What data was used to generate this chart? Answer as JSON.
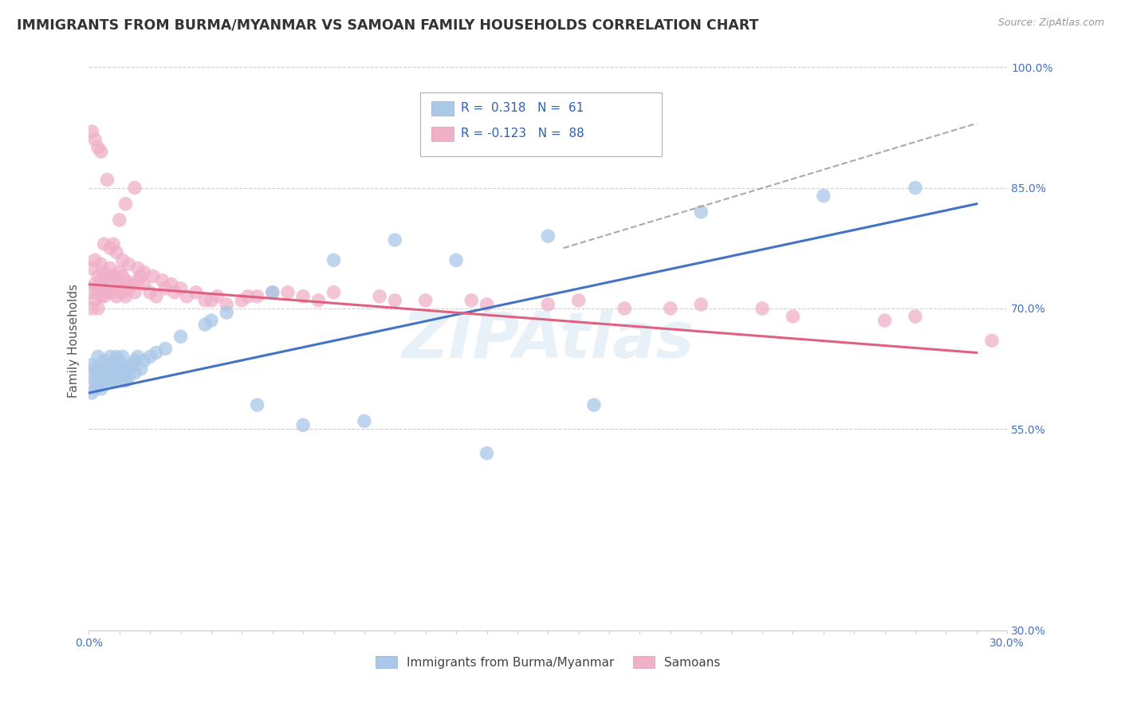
{
  "title": "IMMIGRANTS FROM BURMA/MYANMAR VS SAMOAN FAMILY HOUSEHOLDS CORRELATION CHART",
  "source_text": "Source: ZipAtlas.com",
  "ylabel": "Family Households",
  "xlim": [
    0.0,
    0.3
  ],
  "ylim": [
    0.3,
    1.02
  ],
  "color_blue": "#aac8e8",
  "color_pink": "#f0b0c8",
  "color_blue_line": "#4472c4",
  "color_pink_line": "#e06080",
  "color_gray_line": "#aaaaaa",
  "legend_R1": "0.318",
  "legend_N1": "61",
  "legend_R2": "-0.123",
  "legend_N2": "88",
  "legend_label1": "Immigrants from Burma/Myanmar",
  "legend_label2": "Samoans",
  "watermark": "ZIPAtlas",
  "ytick_positions": [
    0.3,
    0.55,
    0.7,
    0.85,
    1.0
  ],
  "ytick_labels": [
    "30.0%",
    "55.0%",
    "70.0%",
    "85.0%",
    "100.0%"
  ],
  "blue_line_x": [
    0.0,
    0.29
  ],
  "blue_line_y": [
    0.595,
    0.83
  ],
  "pink_line_x": [
    0.0,
    0.29
  ],
  "pink_line_y": [
    0.73,
    0.645
  ],
  "gray_line_x": [
    0.155,
    0.29
  ],
  "gray_line_y": [
    0.775,
    0.93
  ],
  "blue_scatter_x": [
    0.001,
    0.001,
    0.001,
    0.002,
    0.002,
    0.002,
    0.003,
    0.003,
    0.003,
    0.004,
    0.004,
    0.004,
    0.005,
    0.005,
    0.005,
    0.006,
    0.006,
    0.007,
    0.007,
    0.007,
    0.008,
    0.008,
    0.008,
    0.009,
    0.009,
    0.009,
    0.01,
    0.01,
    0.01,
    0.011,
    0.011,
    0.012,
    0.012,
    0.013,
    0.013,
    0.014,
    0.015,
    0.015,
    0.016,
    0.017,
    0.018,
    0.02,
    0.022,
    0.025,
    0.03,
    0.038,
    0.045,
    0.06,
    0.08,
    0.1,
    0.13,
    0.165,
    0.2,
    0.24,
    0.27,
    0.12,
    0.15,
    0.04,
    0.055,
    0.07,
    0.09
  ],
  "blue_scatter_y": [
    0.615,
    0.63,
    0.595,
    0.625,
    0.61,
    0.6,
    0.62,
    0.64,
    0.605,
    0.625,
    0.615,
    0.6,
    0.62,
    0.635,
    0.61,
    0.615,
    0.625,
    0.63,
    0.61,
    0.64,
    0.62,
    0.625,
    0.61,
    0.625,
    0.615,
    0.64,
    0.62,
    0.61,
    0.635,
    0.625,
    0.64,
    0.62,
    0.61,
    0.625,
    0.615,
    0.63,
    0.635,
    0.62,
    0.64,
    0.625,
    0.635,
    0.64,
    0.645,
    0.65,
    0.665,
    0.68,
    0.695,
    0.72,
    0.76,
    0.785,
    0.52,
    0.58,
    0.82,
    0.84,
    0.85,
    0.76,
    0.79,
    0.685,
    0.58,
    0.555,
    0.56
  ],
  "pink_scatter_x": [
    0.001,
    0.001,
    0.001,
    0.002,
    0.002,
    0.002,
    0.003,
    0.003,
    0.003,
    0.004,
    0.004,
    0.004,
    0.005,
    0.005,
    0.005,
    0.006,
    0.006,
    0.007,
    0.007,
    0.008,
    0.008,
    0.009,
    0.009,
    0.01,
    0.01,
    0.011,
    0.011,
    0.012,
    0.012,
    0.013,
    0.014,
    0.015,
    0.016,
    0.017,
    0.018,
    0.02,
    0.022,
    0.025,
    0.028,
    0.032,
    0.038,
    0.045,
    0.052,
    0.06,
    0.07,
    0.08,
    0.095,
    0.11,
    0.13,
    0.16,
    0.19,
    0.22,
    0.26,
    0.295,
    0.04,
    0.055,
    0.075,
    0.1,
    0.125,
    0.15,
    0.175,
    0.2,
    0.23,
    0.27,
    0.01,
    0.012,
    0.015,
    0.008,
    0.006,
    0.004,
    0.003,
    0.002,
    0.001,
    0.005,
    0.007,
    0.009,
    0.011,
    0.013,
    0.016,
    0.018,
    0.021,
    0.024,
    0.027,
    0.03,
    0.035,
    0.042,
    0.05,
    0.065
  ],
  "pink_scatter_y": [
    0.72,
    0.7,
    0.75,
    0.71,
    0.73,
    0.76,
    0.72,
    0.74,
    0.7,
    0.715,
    0.735,
    0.755,
    0.725,
    0.745,
    0.715,
    0.72,
    0.74,
    0.73,
    0.75,
    0.72,
    0.74,
    0.715,
    0.735,
    0.725,
    0.745,
    0.72,
    0.74,
    0.715,
    0.735,
    0.725,
    0.73,
    0.72,
    0.735,
    0.74,
    0.73,
    0.72,
    0.715,
    0.725,
    0.72,
    0.715,
    0.71,
    0.705,
    0.715,
    0.72,
    0.715,
    0.72,
    0.715,
    0.71,
    0.705,
    0.71,
    0.7,
    0.7,
    0.685,
    0.66,
    0.71,
    0.715,
    0.71,
    0.71,
    0.71,
    0.705,
    0.7,
    0.705,
    0.69,
    0.69,
    0.81,
    0.83,
    0.85,
    0.78,
    0.86,
    0.895,
    0.9,
    0.91,
    0.92,
    0.78,
    0.775,
    0.77,
    0.76,
    0.755,
    0.75,
    0.745,
    0.74,
    0.735,
    0.73,
    0.725,
    0.72,
    0.715,
    0.71,
    0.72
  ]
}
